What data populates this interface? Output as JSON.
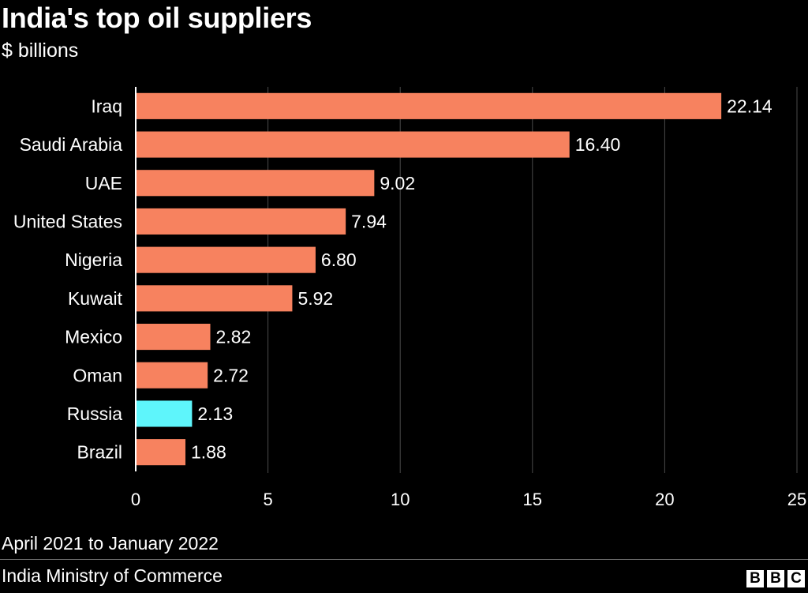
{
  "chart_data": {
    "type": "bar",
    "orientation": "horizontal",
    "title": "India's top oil suppliers",
    "subtitle": "$ billions",
    "categories": [
      "Iraq",
      "Saudi Arabia",
      "UAE",
      "United States",
      "Nigeria",
      "Kuwait",
      "Mexico",
      "Oman",
      "Russia",
      "Brazil"
    ],
    "values": [
      22.14,
      16.4,
      9.02,
      7.94,
      6.8,
      5.92,
      2.82,
      2.72,
      2.13,
      1.88
    ],
    "value_labels": [
      "22.14",
      "16.40",
      "9.02",
      "7.94",
      "6.80",
      "5.92",
      "2.82",
      "2.72",
      "2.13",
      "1.88"
    ],
    "highlight": "Russia",
    "xlim": [
      0,
      25
    ],
    "xticks": [
      0,
      5,
      10,
      15,
      20,
      25
    ],
    "grid": true,
    "xlabel": "",
    "ylabel": "",
    "colors": {
      "bar": "#f7825f",
      "highlight": "#5ef5fb",
      "grid": "#4a4a4a",
      "axis": "#ffffff",
      "background": "#000000"
    }
  },
  "footer": {
    "note": "April 2021 to January 2022",
    "source": "India Ministry of Commerce",
    "logo_letters": [
      "B",
      "B",
      "C"
    ]
  }
}
